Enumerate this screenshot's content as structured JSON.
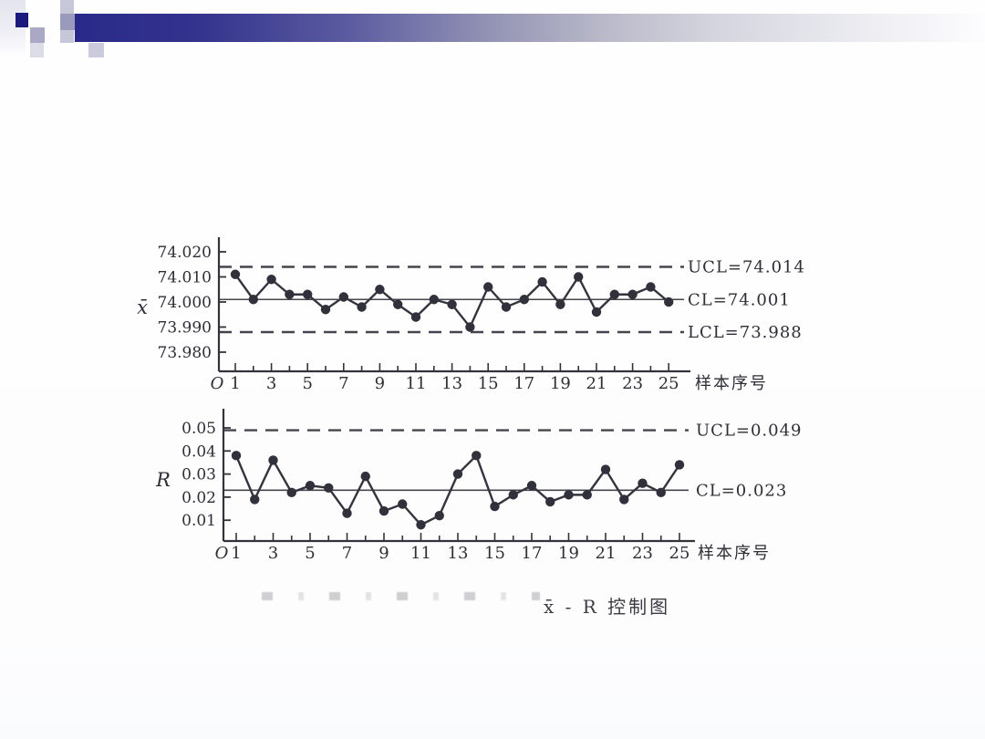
{
  "decor": {
    "navy": "#1a1a7e",
    "bar_start": "#29298a",
    "square_mid": "#a9a9c6",
    "square_light": "#dcdce9",
    "strip_lavender": "#c7c7da",
    "square_dark": "#9a9abd",
    "square_under": "#cbcbde"
  },
  "caption": {
    "title": "x̄ - R 控制图"
  },
  "chart_data": [
    {
      "id": "xbar",
      "type": "line",
      "name": "x-bar control chart",
      "y_axis_title": "x̄",
      "x_axis_title": "样本序号",
      "origin_label": "O",
      "y_ticks": [
        "74.020",
        "74.010",
        "74.000",
        "73.990",
        "73.980"
      ],
      "ylim": [
        73.975,
        74.025
      ],
      "x_tick_labels": [
        "1",
        "3",
        "5",
        "7",
        "9",
        "11",
        "13",
        "15",
        "17",
        "19",
        "21",
        "23",
        "25"
      ],
      "lines": {
        "ucl": {
          "value": 74.014,
          "label": "UCL=74.014",
          "style": "dashed"
        },
        "cl": {
          "value": 74.001,
          "label": "CL=74.001",
          "style": "solid"
        },
        "lcl": {
          "value": 73.988,
          "label": "LCL=73.988",
          "style": "dashed"
        }
      },
      "x": [
        1,
        2,
        3,
        4,
        5,
        6,
        7,
        8,
        9,
        10,
        11,
        12,
        13,
        14,
        15,
        16,
        17,
        18,
        19,
        20,
        21,
        22,
        23,
        24,
        25
      ],
      "values": [
        74.011,
        74.001,
        74.009,
        74.003,
        74.003,
        73.997,
        74.002,
        73.998,
        74.005,
        73.999,
        73.994,
        74.001,
        73.999,
        73.99,
        74.006,
        73.998,
        74.001,
        74.008,
        73.999,
        74.01,
        73.996,
        74.003,
        74.003,
        74.006,
        74.0
      ]
    },
    {
      "id": "r",
      "type": "line",
      "name": "R control chart",
      "y_axis_title": "R",
      "x_axis_title": "样本序号",
      "origin_label": "O",
      "y_ticks": [
        "0.05",
        "0.04",
        "0.03",
        "0.02",
        "0.01"
      ],
      "ylim": [
        0.0,
        0.055
      ],
      "x_tick_labels": [
        "1",
        "3",
        "5",
        "7",
        "9",
        "11",
        "13",
        "15",
        "17",
        "19",
        "21",
        "23",
        "25"
      ],
      "lines": {
        "ucl": {
          "value": 0.049,
          "label": "UCL=0.049",
          "style": "dashed"
        },
        "cl": {
          "value": 0.023,
          "label": "CL=0.023",
          "style": "solid"
        }
      },
      "x": [
        1,
        2,
        3,
        4,
        5,
        6,
        7,
        8,
        9,
        10,
        11,
        12,
        13,
        14,
        15,
        16,
        17,
        18,
        19,
        20,
        21,
        22,
        23,
        24,
        25
      ],
      "values": [
        0.038,
        0.019,
        0.036,
        0.022,
        0.025,
        0.024,
        0.013,
        0.029,
        0.014,
        0.017,
        0.008,
        0.012,
        0.03,
        0.038,
        0.016,
        0.021,
        0.025,
        0.018,
        0.021,
        0.021,
        0.032,
        0.019,
        0.026,
        0.022,
        0.034
      ]
    }
  ]
}
